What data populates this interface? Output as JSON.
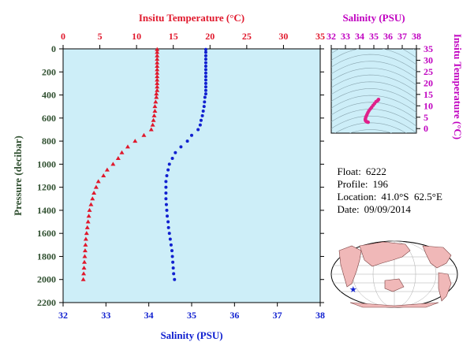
{
  "colors": {
    "plot_bg": "#cdeef8",
    "temperature": "#e0182c",
    "salinity": "#1020d0",
    "ts_axis": "#c000c0",
    "pressure_axis": "#2f4f2f",
    "ts_points": "#e0208a"
  },
  "info": {
    "float_label": "Float:",
    "float_value": "6222",
    "profile_label": "Profile:",
    "profile_value": "196",
    "location_label": "Location:",
    "location_value": "41.0°S  62.5°E",
    "date_label": "Date:",
    "date_value": "09/09/2014"
  },
  "chart_data": [
    {
      "type": "line",
      "title": "",
      "top_axis_label": "Insitu Temperature (°C)",
      "bottom_axis_label": "Salinity (PSU)",
      "ylabel": "Pressure (decibar)",
      "ylim": [
        0,
        2200
      ],
      "y_inverted": true,
      "temperature_xlim": [
        0,
        35
      ],
      "salinity_xlim": [
        32,
        38
      ],
      "pressure_ticks": [
        0,
        200,
        400,
        600,
        800,
        1000,
        1200,
        1400,
        1600,
        1800,
        2000,
        2200
      ],
      "temperature_ticks": [
        0,
        5,
        10,
        15,
        20,
        25,
        30,
        35
      ],
      "salinity_ticks": [
        32,
        33,
        34,
        35,
        36,
        37,
        38
      ],
      "grid": false,
      "series": [
        {
          "name": "Insitu Temperature (°C)",
          "marker": "triangle",
          "axis": "top",
          "points": [
            [
              12.8,
              5
            ],
            [
              12.8,
              30
            ],
            [
              12.8,
              60
            ],
            [
              12.8,
              90
            ],
            [
              12.8,
              120
            ],
            [
              12.8,
              150
            ],
            [
              12.8,
              180
            ],
            [
              12.8,
              210
            ],
            [
              12.8,
              240
            ],
            [
              12.8,
              270
            ],
            [
              12.8,
              300
            ],
            [
              12.8,
              330
            ],
            [
              12.8,
              360
            ],
            [
              12.7,
              390
            ],
            [
              12.7,
              420
            ],
            [
              12.6,
              460
            ],
            [
              12.5,
              500
            ],
            [
              12.5,
              540
            ],
            [
              12.4,
              580
            ],
            [
              12.3,
              620
            ],
            [
              12.2,
              660
            ],
            [
              12.0,
              700
            ],
            [
              11.0,
              750
            ],
            [
              9.8,
              800
            ],
            [
              8.8,
              850
            ],
            [
              8.0,
              900
            ],
            [
              7.5,
              950
            ],
            [
              6.8,
              1000
            ],
            [
              6.0,
              1050
            ],
            [
              5.5,
              1100
            ],
            [
              4.8,
              1150
            ],
            [
              4.5,
              1200
            ],
            [
              4.2,
              1250
            ],
            [
              4.0,
              1300
            ],
            [
              3.8,
              1350
            ],
            [
              3.6,
              1400
            ],
            [
              3.5,
              1450
            ],
            [
              3.4,
              1500
            ],
            [
              3.3,
              1550
            ],
            [
              3.2,
              1600
            ],
            [
              3.1,
              1650
            ],
            [
              3.05,
              1700
            ],
            [
              3.0,
              1750
            ],
            [
              2.95,
              1800
            ],
            [
              2.9,
              1850
            ],
            [
              2.85,
              1900
            ],
            [
              2.8,
              1950
            ],
            [
              2.75,
              2000
            ]
          ]
        },
        {
          "name": "Salinity (PSU)",
          "marker": "dot",
          "axis": "bottom",
          "points": [
            [
              35.33,
              5
            ],
            [
              35.33,
              30
            ],
            [
              35.33,
              60
            ],
            [
              35.33,
              90
            ],
            [
              35.33,
              120
            ],
            [
              35.33,
              150
            ],
            [
              35.33,
              180
            ],
            [
              35.33,
              210
            ],
            [
              35.33,
              240
            ],
            [
              35.33,
              270
            ],
            [
              35.33,
              300
            ],
            [
              35.33,
              330
            ],
            [
              35.33,
              360
            ],
            [
              35.33,
              390
            ],
            [
              35.31,
              420
            ],
            [
              35.3,
              460
            ],
            [
              35.29,
              500
            ],
            [
              35.27,
              540
            ],
            [
              35.25,
              580
            ],
            [
              35.22,
              620
            ],
            [
              35.2,
              660
            ],
            [
              35.15,
              700
            ],
            [
              35.0,
              750
            ],
            [
              34.9,
              800
            ],
            [
              34.75,
              850
            ],
            [
              34.62,
              900
            ],
            [
              34.55,
              950
            ],
            [
              34.48,
              1000
            ],
            [
              34.45,
              1050
            ],
            [
              34.42,
              1100
            ],
            [
              34.4,
              1150
            ],
            [
              34.4,
              1200
            ],
            [
              34.4,
              1250
            ],
            [
              34.4,
              1300
            ],
            [
              34.41,
              1350
            ],
            [
              34.42,
              1400
            ],
            [
              34.43,
              1450
            ],
            [
              34.45,
              1500
            ],
            [
              34.46,
              1550
            ],
            [
              34.48,
              1600
            ],
            [
              34.5,
              1650
            ],
            [
              34.52,
              1700
            ],
            [
              34.54,
              1750
            ],
            [
              34.55,
              1800
            ],
            [
              34.56,
              1850
            ],
            [
              34.57,
              1900
            ],
            [
              34.58,
              1950
            ],
            [
              34.6,
              2000
            ]
          ]
        }
      ]
    },
    {
      "type": "scatter",
      "title": "",
      "xlabel": "Salinity (PSU)",
      "ylabel": "Insitu Temperature (°C)",
      "xlim": [
        32,
        38
      ],
      "ylim": [
        -2,
        35
      ],
      "x_ticks": [
        32,
        33,
        34,
        35,
        36,
        37,
        38
      ],
      "y_ticks": [
        0,
        5,
        10,
        15,
        20,
        25,
        30,
        35
      ],
      "points": [
        [
          35.33,
          12.8
        ],
        [
          35.3,
          12.5
        ],
        [
          35.25,
          12.2
        ],
        [
          35.15,
          11.8
        ],
        [
          35.05,
          11.0
        ],
        [
          34.95,
          10.2
        ],
        [
          34.85,
          9.4
        ],
        [
          34.75,
          8.6
        ],
        [
          34.65,
          7.8
        ],
        [
          34.58,
          7.0
        ],
        [
          34.52,
          6.2
        ],
        [
          34.47,
          5.5
        ],
        [
          34.43,
          4.9
        ],
        [
          34.41,
          4.4
        ],
        [
          34.4,
          4.0
        ],
        [
          34.41,
          3.6
        ],
        [
          34.43,
          3.4
        ],
        [
          34.46,
          3.2
        ],
        [
          34.5,
          3.0
        ],
        [
          34.55,
          2.9
        ],
        [
          34.6,
          2.8
        ]
      ]
    }
  ]
}
